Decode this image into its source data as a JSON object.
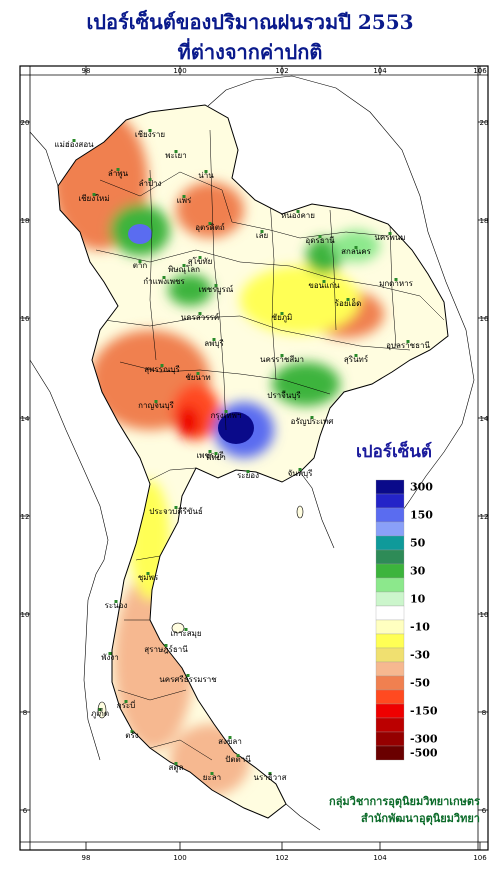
{
  "title": {
    "line1": "เปอร์เซ็นต์ของปริมาณฝนรวมปี 2553",
    "line2": "ที่ต่างจากค่าปกติ"
  },
  "axes": {
    "x_ticks": [
      "98",
      "100",
      "102",
      "104",
      "106"
    ],
    "y_ticks": [
      "20",
      "18",
      "16",
      "14",
      "12",
      "10",
      "8",
      "6"
    ]
  },
  "legend": {
    "title": "เปอร์เซ็นต์",
    "entries": [
      {
        "label": "300",
        "color": "#0a0a8a"
      },
      {
        "label": "",
        "color": "#2424c8"
      },
      {
        "label": "150",
        "color": "#5a6cf0"
      },
      {
        "label": "",
        "color": "#8aa0f8"
      },
      {
        "label": "50",
        "color": "#0f9a9a"
      },
      {
        "label": "",
        "color": "#2e8b57"
      },
      {
        "label": "30",
        "color": "#3cb43c"
      },
      {
        "label": "",
        "color": "#8ce88c"
      },
      {
        "label": "10",
        "color": "#ccf6cc"
      },
      {
        "label": "",
        "color": "#ffffff"
      },
      {
        "label": "-10",
        "color": "#ffffc0"
      },
      {
        "label": "",
        "color": "#ffff55"
      },
      {
        "label": "-30",
        "color": "#f0e070"
      },
      {
        "label": "",
        "color": "#f6b890"
      },
      {
        "label": "-50",
        "color": "#f08050"
      },
      {
        "label": "",
        "color": "#ff4a20"
      },
      {
        "label": "-150",
        "color": "#ee0000"
      },
      {
        "label": "",
        "color": "#bb0000"
      },
      {
        "label": "-300",
        "color": "#950000"
      },
      {
        "label": "-500",
        "color": "#6a0000"
      }
    ]
  },
  "places": [
    {
      "name": "แม่ฮ่องสอน"
    },
    {
      "name": "เชียงราย"
    },
    {
      "name": "พะเยา"
    },
    {
      "name": "ลำพูน"
    },
    {
      "name": "ลำปาง"
    },
    {
      "name": "น่าน"
    },
    {
      "name": "แพร่"
    },
    {
      "name": "เชียงใหม่"
    },
    {
      "name": "อุตรดิตถ์"
    },
    {
      "name": "ตาก"
    },
    {
      "name": "หนองคาย"
    },
    {
      "name": "อุดรธานี"
    },
    {
      "name": "นครพนม"
    },
    {
      "name": "สกลนคร"
    },
    {
      "name": "เลย"
    },
    {
      "name": "พิษณุโลก"
    },
    {
      "name": "สุโขทัย"
    },
    {
      "name": "กำแพงเพชร"
    },
    {
      "name": "เพชรบูรณ์"
    },
    {
      "name": "ขอนแก่น"
    },
    {
      "name": "มุกดาหาร"
    },
    {
      "name": "นครสวรรค์"
    },
    {
      "name": "ชัยภูมิ"
    },
    {
      "name": "ร้อยเอ็ด"
    },
    {
      "name": "อุบลราชธานี"
    },
    {
      "name": "ลพบุรี"
    },
    {
      "name": "นครราชสีมา"
    },
    {
      "name": "สุรินทร์"
    },
    {
      "name": "สุพรรณบุรี"
    },
    {
      "name": "ชัยนาท"
    },
    {
      "name": "ปราจีนบุรี"
    },
    {
      "name": "กาญจนบุรี"
    },
    {
      "name": "กรุงเทพฯ"
    },
    {
      "name": "อรัญประเทศ"
    },
    {
      "name": "เพชรบุรี"
    },
    {
      "name": "พัทยา"
    },
    {
      "name": "ระยอง"
    },
    {
      "name": "จันทบุรี"
    },
    {
      "name": "ประจวบคีรีขันธ์"
    },
    {
      "name": "ชุมพร"
    },
    {
      "name": "ระนอง"
    },
    {
      "name": "เกาะสมุย"
    },
    {
      "name": "สุราษฎร์ธานี"
    },
    {
      "name": "พังงา"
    },
    {
      "name": "ภูเก็ต"
    },
    {
      "name": "นครศรีธรรมราช"
    },
    {
      "name": "กระบี่"
    },
    {
      "name": "ตรัง"
    },
    {
      "name": "สงขลา"
    },
    {
      "name": "สตูล"
    },
    {
      "name": "ปัตตานี"
    },
    {
      "name": "นราธิวาส"
    },
    {
      "name": "ยะลา"
    }
  ],
  "credit": {
    "line1": "กลุ่มวิชาการอุตุนิยมวิทยาเกษตร",
    "line2": "สำนักพัฒนาอุตุนิยมวิทยา"
  }
}
